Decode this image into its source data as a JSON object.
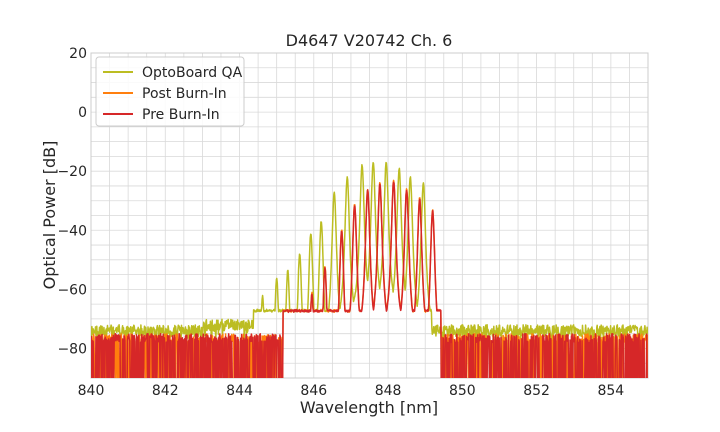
{
  "chart_data": {
    "type": "line",
    "title": "D4647 V20742 Ch. 6",
    "xlabel": "Wavelength [nm]",
    "ylabel": "Optical Power [dB]",
    "xlim": [
      840,
      855
    ],
    "ylim": [
      -90,
      20
    ],
    "xticks": [
      "840",
      "842",
      "844",
      "846",
      "848",
      "850",
      "852",
      "854"
    ],
    "yticks": [
      "20",
      "0",
      "−20",
      "−40",
      "−60",
      "−80"
    ],
    "grid": true,
    "legend_position": "top-left",
    "noise_floor": -73,
    "series": [
      {
        "name": "OptoBoard QA",
        "color": "#bcbd22",
        "peaks": [
          [
            844.62,
            -62
          ],
          [
            845.0,
            -56
          ],
          [
            845.3,
            -53.5
          ],
          [
            845.62,
            -48
          ],
          [
            845.92,
            -41
          ],
          [
            846.2,
            -37
          ],
          [
            846.55,
            -27
          ],
          [
            846.9,
            -22
          ],
          [
            847.3,
            -18
          ],
          [
            847.6,
            -17
          ],
          [
            847.95,
            -17
          ],
          [
            848.3,
            -19
          ],
          [
            848.6,
            -22
          ],
          [
            848.95,
            -24
          ]
        ]
      },
      {
        "name": "Post Burn-In",
        "color": "#ff7f0e",
        "peaks": [
          [
            845.42,
            -67
          ],
          [
            845.95,
            -61
          ],
          [
            846.3,
            -52.5
          ],
          [
            846.75,
            -40
          ],
          [
            847.1,
            -31
          ],
          [
            847.45,
            -26
          ],
          [
            847.78,
            -24
          ],
          [
            848.15,
            -23
          ],
          [
            848.5,
            -26
          ],
          [
            848.85,
            -29
          ],
          [
            849.2,
            -33
          ]
        ]
      },
      {
        "name": "Pre Burn-In",
        "color": "#d62728",
        "peaks": [
          [
            845.42,
            -67.5
          ],
          [
            845.95,
            -61.5
          ],
          [
            846.3,
            -53
          ],
          [
            846.75,
            -40.5
          ],
          [
            847.1,
            -31.5
          ],
          [
            847.45,
            -26.5
          ],
          [
            847.78,
            -24.5
          ],
          [
            848.15,
            -23.5
          ],
          [
            848.5,
            -26.5
          ],
          [
            848.85,
            -29.5
          ],
          [
            849.2,
            -33.5
          ]
        ]
      }
    ]
  }
}
